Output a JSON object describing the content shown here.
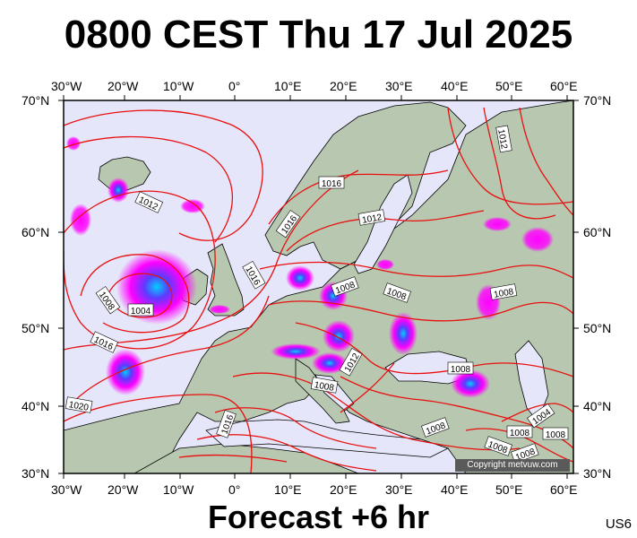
{
  "title": "0800 CEST Thu 17 Jul 2025",
  "forecast": "Forecast +6 hr",
  "model": "US6",
  "copyright": "Copyright metvuw.com",
  "axes": {
    "top": [
      "30°W",
      "20°W",
      "10°W",
      "0°",
      "10°E",
      "20°E",
      "30°E",
      "40°E",
      "50°E",
      "60°E"
    ],
    "bottom": [
      "30°W",
      "20°W",
      "10°W",
      "0°",
      "10°E",
      "20°E",
      "30°E",
      "40°E",
      "50°E",
      "60°E"
    ],
    "left": [
      "70°N",
      "60°N",
      "50°N",
      "40°N",
      "30°N"
    ],
    "right": [
      "70°N",
      "60°N",
      "50°N",
      "40°N",
      "30°N"
    ]
  },
  "isobar_labels": [
    "1012",
    "1016",
    "1016",
    "1012",
    "1016",
    "1008",
    "1008",
    "1004",
    "1008",
    "1016",
    "1008",
    "1012",
    "1008",
    "1016",
    "1020",
    "1008",
    "1012",
    "1008",
    "1008",
    "1004",
    "1008",
    "1008",
    "1008"
  ],
  "colors": {
    "sea": "#e6e6fa",
    "land": "#b8c8b0",
    "isobar": "#e81010",
    "rain_light": "#ff00ff",
    "rain_mid": "#6a3cff",
    "rain_heavy": "#00c8ff"
  }
}
